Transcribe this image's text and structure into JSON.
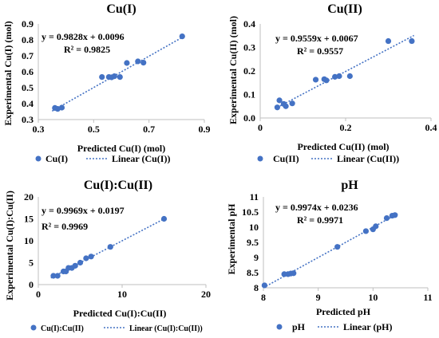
{
  "chart_data": [
    {
      "type": "scatter",
      "title": "Cu(I)",
      "xlabel": "Predicted Cu(I) (mol)",
      "ylabel": "Experimental Cu(I) (mol)",
      "xlim": [
        0.3,
        0.9
      ],
      "ylim": [
        0.3,
        0.9
      ],
      "x_ticks": [
        "0.3",
        "0.5",
        "0.7",
        "0.9"
      ],
      "y_ticks": [
        "0.3",
        "0.4",
        "0.5",
        "0.6",
        "0.7",
        "0.8",
        "0.9"
      ],
      "equation": "y = 0.9828x + 0.0096",
      "r2_text": "R² = 0.9825",
      "slope": 0.9828,
      "intercept": 0.0096,
      "trend_x": [
        0.35,
        0.83
      ],
      "legend_series": "Cu(I)",
      "legend_trend": "Linear (Cu(I))",
      "points": [
        [
          0.36,
          0.373
        ],
        [
          0.37,
          0.367
        ],
        [
          0.385,
          0.375
        ],
        [
          0.53,
          0.567
        ],
        [
          0.555,
          0.567
        ],
        [
          0.565,
          0.565
        ],
        [
          0.575,
          0.572
        ],
        [
          0.595,
          0.567
        ],
        [
          0.62,
          0.655
        ],
        [
          0.66,
          0.665
        ],
        [
          0.68,
          0.657
        ],
        [
          0.82,
          0.822
        ]
      ]
    },
    {
      "type": "scatter",
      "title": "Cu(II)",
      "xlabel": "Predicted Cu(II) (mol)",
      "ylabel": "Experimental Cu(II) (mol)",
      "xlim": [
        0,
        0.4
      ],
      "ylim": [
        0,
        0.4
      ],
      "x_ticks": [
        "0",
        "0.2",
        "0.4"
      ],
      "y_ticks": [
        "0.0",
        "0.1",
        "0.2",
        "0.3",
        "0.4"
      ],
      "equation": "y = 0.9559x + 0.0067",
      "r2_text": "R² = 0.9557",
      "slope": 0.9559,
      "intercept": 0.0067,
      "trend_x": [
        0.04,
        0.36
      ],
      "legend_series": "Cu(II)",
      "legend_trend": "Linear (Cu(II))",
      "points": [
        [
          0.04,
          0.045
        ],
        [
          0.045,
          0.075
        ],
        [
          0.055,
          0.06
        ],
        [
          0.06,
          0.05
        ],
        [
          0.075,
          0.062
        ],
        [
          0.13,
          0.163
        ],
        [
          0.15,
          0.165
        ],
        [
          0.155,
          0.16
        ],
        [
          0.175,
          0.175
        ],
        [
          0.185,
          0.178
        ],
        [
          0.21,
          0.178
        ],
        [
          0.3,
          0.327
        ],
        [
          0.355,
          0.327
        ]
      ]
    },
    {
      "type": "scatter",
      "title": "Cu(I):Cu(II)",
      "xlabel": "Predicted Cu(I):Cu(II)",
      "ylabel": "Experimental Cu(I):Cu(II)",
      "xlim": [
        0,
        20
      ],
      "ylim": [
        0,
        20
      ],
      "x_ticks": [
        "0",
        "10",
        "20"
      ],
      "y_ticks": [
        "0",
        "5",
        "10",
        "15",
        "20"
      ],
      "equation": "y = 0.9969x + 0.0197",
      "r2_text": "R² = 0.9969",
      "slope": 0.9969,
      "intercept": 0.0197,
      "trend_x": [
        1.5,
        15
      ],
      "legend_series": "Cu(I):Cu(II)",
      "legend_trend": "Linear (Cu(I):Cu(II))",
      "points": [
        [
          1.8,
          2.0
        ],
        [
          2.3,
          2.0
        ],
        [
          3.0,
          3.0
        ],
        [
          3.3,
          3.0
        ],
        [
          3.6,
          3.8
        ],
        [
          4.0,
          3.8
        ],
        [
          4.4,
          4.3
        ],
        [
          5.0,
          5.0
        ],
        [
          5.7,
          6.0
        ],
        [
          6.3,
          6.4
        ],
        [
          8.6,
          8.6
        ],
        [
          15.0,
          15.0
        ]
      ]
    },
    {
      "type": "scatter",
      "title": "pH",
      "xlabel": "Predicted pH",
      "ylabel": "Experimental pH",
      "xlim": [
        8,
        11
      ],
      "ylim": [
        8,
        11
      ],
      "x_ticks": [
        "8",
        "9",
        "10",
        "11"
      ],
      "y_ticks": [
        "8",
        "8.5",
        "9",
        "9.5",
        "10",
        "10.5",
        "11"
      ],
      "equation": "y = 0.9974x + 0.0236",
      "r2_text": "R² = 0.9971",
      "slope": 0.9974,
      "intercept": 0.0236,
      "trend_x": [
        8.0,
        10.45
      ],
      "legend_series": "pH",
      "legend_trend": "Linear (pH)",
      "points": [
        [
          8.02,
          8.08
        ],
        [
          8.38,
          8.45
        ],
        [
          8.45,
          8.45
        ],
        [
          8.5,
          8.47
        ],
        [
          8.55,
          8.48
        ],
        [
          9.35,
          9.35
        ],
        [
          9.87,
          9.87
        ],
        [
          10.0,
          9.93
        ],
        [
          10.05,
          10.03
        ],
        [
          10.25,
          10.3
        ],
        [
          10.35,
          10.38
        ],
        [
          10.4,
          10.4
        ]
      ]
    }
  ],
  "colors": {
    "marker": "#4472C4",
    "trend": "#4472C4",
    "axis": "#bfbfbf"
  }
}
